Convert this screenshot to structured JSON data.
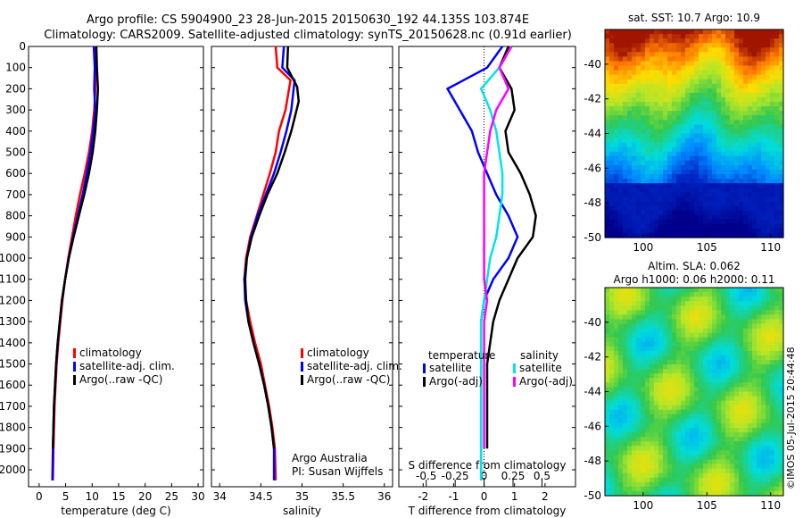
{
  "header": {
    "line1": "Argo profile: CS 5904900_23 28-Jun-2015 20150630_192 44.135S 103.874E",
    "line2": "Climatology: CARS2009. Satellite-adjusted climatology: synTS_20150628.nc (0.91d earlier)"
  },
  "credit": "©IMOS 05-Jul-2015 20:44:48",
  "colors": {
    "red": "#ff0000",
    "blue": "#0000ff",
    "black": "#000000",
    "cyan": "#00e5e5",
    "magenta": "#ff00ff"
  },
  "chart_data": [
    {
      "type": "line",
      "name": "temperature",
      "xlabel": "temperature (deg C)",
      "ylabel": "",
      "xlim": [
        -2,
        31
      ],
      "ylim": [
        2080,
        0
      ],
      "xticks": [
        0,
        5,
        10,
        15,
        20,
        25,
        30
      ],
      "yticks": [
        0,
        100,
        200,
        300,
        400,
        500,
        600,
        700,
        800,
        900,
        1000,
        1100,
        1200,
        1300,
        1400,
        1500,
        1600,
        1700,
        1800,
        1900,
        2000
      ],
      "legend": [
        "climatology",
        "satellite-adj. clim.",
        "Argo(..raw -QC)"
      ],
      "legend_colors": [
        "#ff0000",
        "#0000ff",
        "#000000"
      ],
      "series": [
        {
          "name": "climatology",
          "color": "#ff0000",
          "x": [
            10.4,
            10.6,
            10.6,
            10.4,
            10.0,
            9.4,
            8.6,
            7.7,
            6.9,
            6.2,
            5.5,
            4.9,
            4.4,
            4.0,
            3.6,
            3.3,
            3.1,
            2.9,
            2.8,
            2.7,
            2.6
          ],
          "y": [
            0,
            100,
            200,
            300,
            400,
            500,
            600,
            700,
            800,
            900,
            1000,
            1100,
            1200,
            1300,
            1400,
            1500,
            1600,
            1700,
            1800,
            1900,
            2050
          ]
        },
        {
          "name": "satellite-adj. clim.",
          "color": "#0000ff",
          "x": [
            10.3,
            10.5,
            10.4,
            10.6,
            10.2,
            9.7,
            9.0,
            8.2,
            7.3,
            6.4,
            5.6,
            4.9,
            4.3,
            3.9,
            3.5,
            3.2,
            3.0,
            2.8,
            2.7,
            2.6,
            2.5
          ],
          "y": [
            0,
            100,
            200,
            300,
            400,
            500,
            600,
            700,
            800,
            900,
            1000,
            1100,
            1200,
            1300,
            1400,
            1500,
            1600,
            1700,
            1800,
            1900,
            2050
          ]
        },
        {
          "name": "Argo(..raw -QC)",
          "color": "#000000",
          "x": [
            10.8,
            10.9,
            11.1,
            10.9,
            10.6,
            10.1,
            9.4,
            8.5,
            7.5,
            6.5,
            5.6,
            4.9,
            4.3,
            3.9,
            3.5,
            3.2,
            3.0,
            2.8,
            2.7,
            2.6
          ],
          "y": [
            0,
            100,
            200,
            300,
            400,
            500,
            600,
            700,
            800,
            900,
            1000,
            1100,
            1200,
            1300,
            1400,
            1500,
            1600,
            1700,
            1800,
            1900
          ]
        }
      ]
    },
    {
      "type": "line",
      "name": "salinity",
      "xlabel": "salinity",
      "xlim": [
        33.9,
        36.1
      ],
      "ylim": [
        2080,
        0
      ],
      "xticks": [
        "34",
        "34.5",
        "35",
        "35.5",
        "36"
      ],
      "xtick_values": [
        34,
        34.5,
        35,
        35.5,
        36
      ],
      "legend": [
        "climatology",
        "satellite-adj. clim.",
        "Argo(..raw -QC)"
      ],
      "legend_colors": [
        "#ff0000",
        "#0000ff",
        "#000000"
      ],
      "annotation": [
        "Argo Australia",
        "PI: Susan Wijffels"
      ],
      "series": [
        {
          "name": "climatology",
          "color": "#ff0000",
          "x": [
            34.68,
            34.7,
            34.86,
            34.8,
            34.72,
            34.68,
            34.61,
            34.53,
            34.45,
            34.37,
            34.32,
            34.3,
            34.32,
            34.37,
            34.43,
            34.5,
            34.55,
            34.6,
            34.64,
            34.67,
            34.68
          ],
          "y": [
            0,
            100,
            160,
            300,
            400,
            500,
            600,
            700,
            800,
            900,
            1000,
            1100,
            1200,
            1300,
            1400,
            1500,
            1600,
            1700,
            1800,
            1900,
            2050
          ]
        },
        {
          "name": "satellite-adj. clim.",
          "color": "#0000ff",
          "x": [
            34.78,
            34.76,
            34.91,
            34.87,
            34.81,
            34.74,
            34.66,
            34.56,
            34.46,
            34.38,
            34.33,
            34.3,
            34.31,
            34.35,
            34.41,
            34.48,
            34.54,
            34.59,
            34.63,
            34.66,
            34.66
          ],
          "y": [
            0,
            100,
            160,
            300,
            400,
            500,
            600,
            700,
            800,
            900,
            1000,
            1100,
            1200,
            1300,
            1400,
            1500,
            1600,
            1700,
            1800,
            1900,
            2050
          ]
        },
        {
          "name": "Argo(..raw -QC)",
          "color": "#000000",
          "x": [
            34.83,
            34.82,
            34.94,
            34.96,
            34.87,
            34.79,
            34.7,
            34.58,
            34.48,
            34.39,
            34.33,
            34.31,
            34.32,
            34.35,
            34.41,
            34.48,
            34.54,
            34.59,
            34.63,
            34.66
          ],
          "y": [
            0,
            100,
            190,
            260,
            400,
            500,
            600,
            700,
            800,
            900,
            1000,
            1100,
            1200,
            1300,
            1400,
            1500,
            1600,
            1700,
            1800,
            1900
          ]
        }
      ]
    },
    {
      "type": "line",
      "name": "difference",
      "xlabel": "T difference from climatology",
      "xlabel_top": "S difference from climatology",
      "xlim": [
        -2.8,
        3.0
      ],
      "ylim": [
        2080,
        0
      ],
      "xticks": [
        "-2",
        "-1",
        "0",
        "1",
        "2"
      ],
      "xtick_values": [
        -2,
        -1,
        0,
        1,
        2
      ],
      "sticks": [
        "-0.5",
        "-0.25",
        "0",
        "0.25",
        "0.5"
      ],
      "stick_values": [
        -1.9,
        -0.95,
        0,
        0.95,
        1.9
      ],
      "legend_headers": [
        "temperature",
        "salinity"
      ],
      "legend": [
        "satellite",
        "Argo(-adj)",
        "satellite",
        "Argo(-adj)"
      ],
      "legend_colors": [
        "#0000ff",
        "#000000",
        "#00e5e5",
        "#ff00ff"
      ],
      "series": [
        {
          "name": "T satellite",
          "color": "#0000ff",
          "x": [
            0.6,
            0.1,
            -1.2,
            -0.8,
            -0.4,
            -0.2,
            0.1,
            0.4,
            0.8,
            1.1,
            0.8,
            0.3,
            0.0,
            -0.1,
            -0.1,
            -0.1,
            -0.1,
            -0.1,
            -0.1,
            -0.1,
            -0.1
          ],
          "y": [
            0,
            100,
            200,
            300,
            400,
            500,
            600,
            700,
            800,
            900,
            1000,
            1100,
            1200,
            1300,
            1400,
            1500,
            1600,
            1700,
            1800,
            1900,
            2050
          ]
        },
        {
          "name": "T Argo(-adj)",
          "color": "#000000",
          "x": [
            0.8,
            0.5,
            0.9,
            1.0,
            0.7,
            0.8,
            1.2,
            1.5,
            1.7,
            1.6,
            1.1,
            0.8,
            0.5,
            0.3,
            0.2,
            0.1,
            0.1,
            0.1,
            0.1,
            0.1
          ],
          "y": [
            0,
            100,
            200,
            300,
            400,
            500,
            600,
            700,
            800,
            900,
            1000,
            1100,
            1200,
            1300,
            1400,
            1500,
            1600,
            1700,
            1800,
            1900
          ]
        },
        {
          "name": "S satellite",
          "color": "#00e5e5",
          "x": [
            0.9,
            0.5,
            -0.1,
            0.2,
            0.4,
            0.5,
            0.6,
            0.6,
            0.5,
            0.4,
            0.2,
            0.1,
            0.0,
            -0.1,
            -0.1,
            -0.1,
            -0.1,
            -0.1,
            -0.1,
            -0.1,
            -0.1
          ],
          "y": [
            0,
            100,
            200,
            300,
            400,
            500,
            600,
            700,
            800,
            900,
            1000,
            1100,
            1200,
            1300,
            1400,
            1500,
            1600,
            1700,
            1800,
            1900,
            2050
          ]
        },
        {
          "name": "S Argo(-adj)",
          "color": "#ff00ff",
          "x": [
            0.9,
            0.5,
            0.8,
            0.4,
            0.2,
            0.1,
            0.0,
            0.0,
            0.0,
            0.0,
            0.0,
            0.0,
            0.1,
            0.0,
            0.0,
            0.0,
            0.0,
            0.0,
            0.0,
            0.0
          ],
          "y": [
            0,
            100,
            200,
            300,
            400,
            500,
            600,
            700,
            800,
            900,
            1000,
            1100,
            1200,
            1300,
            1400,
            1500,
            1600,
            1700,
            1800,
            1900
          ]
        }
      ]
    },
    {
      "type": "heatmap",
      "name": "sst-map",
      "title": "sat. SST: 10.7  Argo: 10.9",
      "xlim": [
        97,
        111
      ],
      "ylim": [
        -50,
        -38
      ],
      "xticks": [
        "100",
        "105",
        "110"
      ],
      "xtick_values": [
        100,
        105,
        110
      ],
      "yticks": [
        "-40",
        "-42",
        "-44",
        "-46",
        "-48",
        "-50"
      ],
      "ytick_values": [
        -40,
        -42,
        -44,
        -46,
        -48,
        -50
      ]
    },
    {
      "type": "heatmap",
      "name": "sla-map",
      "title": "Altim. SLA: 0.062",
      "subtitle": "Argo h1000: 0.06 h2000: 0.11",
      "xlim": [
        97,
        111
      ],
      "ylim": [
        -50,
        -38
      ],
      "xticks": [
        "100",
        "105",
        "110"
      ],
      "xtick_values": [
        100,
        105,
        110
      ],
      "yticks": [
        "-40",
        "-42",
        "-44",
        "-46",
        "-48",
        "-50"
      ],
      "ytick_values": [
        -40,
        -42,
        -44,
        -46,
        -48,
        -50
      ]
    }
  ]
}
